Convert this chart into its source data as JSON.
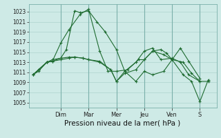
{
  "bg_color": "#ceeae6",
  "grid_color": "#aed4cf",
  "line_color": "#1e6b30",
  "ylim": [
    1004,
    1024.5
  ],
  "yticks": [
    1005,
    1007,
    1009,
    1011,
    1013,
    1015,
    1017,
    1019,
    1021,
    1023
  ],
  "xlabel": "Pression niveau de la mer( hPa )",
  "xlabel_fontsize": 7.5,
  "day_labels": [
    "Dim",
    "Mar",
    "Mer",
    "Jeu",
    "Ven",
    "S"
  ],
  "day_tick_positions": [
    1,
    2,
    3,
    4,
    5,
    6
  ],
  "vline_positions": [
    1,
    2,
    3,
    4,
    5,
    6
  ],
  "series": [
    {
      "x": [
        0.0,
        0.2,
        0.5,
        0.7,
        1.0,
        1.2,
        1.5,
        1.7,
        2.0,
        2.3,
        2.6,
        3.0,
        3.3,
        3.7,
        4.0,
        4.3,
        4.7,
        5.0,
        5.3,
        5.6,
        6.0
      ],
      "y": [
        1010.5,
        1011.2,
        1013.0,
        1013.2,
        1013.8,
        1015.5,
        1023.2,
        1022.8,
        1023.2,
        1021.0,
        1019.0,
        1015.5,
        1011.2,
        1009.2,
        1011.2,
        1010.5,
        1011.2,
        1013.5,
        1015.8,
        1013.2,
        1009.8
      ]
    },
    {
      "x": [
        0.0,
        0.2,
        0.5,
        0.7,
        1.0,
        1.3,
        1.7,
        2.0,
        2.4,
        2.7,
        3.0,
        3.4,
        3.8,
        4.0,
        4.3,
        4.7,
        5.0,
        5.4,
        5.7,
        6.0,
        6.3
      ],
      "y": [
        1010.5,
        1011.5,
        1013.0,
        1013.2,
        1016.8,
        1019.5,
        1022.5,
        1023.5,
        1015.2,
        1011.2,
        1011.2,
        1011.5,
        1013.5,
        1013.5,
        1015.2,
        1014.5,
        1013.5,
        1010.5,
        1009.2,
        1005.2,
        1009.5
      ]
    },
    {
      "x": [
        0.0,
        0.2,
        0.5,
        0.7,
        1.0,
        1.3,
        1.5,
        1.8,
        2.0,
        2.4,
        2.8,
        3.0,
        3.3,
        3.7,
        4.0,
        4.3,
        4.6,
        5.0,
        5.3,
        5.6,
        6.0
      ],
      "y": [
        1010.5,
        1011.5,
        1013.0,
        1013.2,
        1013.5,
        1013.8,
        1014.0,
        1013.8,
        1013.5,
        1013.2,
        1011.5,
        1009.2,
        1011.2,
        1013.0,
        1015.2,
        1015.8,
        1013.5,
        1013.8,
        1013.0,
        1010.5,
        1009.2
      ]
    },
    {
      "x": [
        0.0,
        0.2,
        0.5,
        0.7,
        1.0,
        1.3,
        1.5,
        1.8,
        2.0,
        2.4,
        2.8,
        3.0,
        3.3,
        3.7,
        4.0,
        4.3,
        4.6,
        4.8,
        5.0,
        5.4,
        5.7,
        6.0,
        6.3
      ],
      "y": [
        1010.5,
        1011.5,
        1013.0,
        1013.5,
        1013.8,
        1014.0,
        1014.0,
        1013.8,
        1013.5,
        1013.0,
        1011.5,
        1009.2,
        1010.8,
        1011.5,
        1013.5,
        1015.2,
        1015.5,
        1014.8,
        1013.5,
        1013.0,
        1010.8,
        1009.2,
        1009.2
      ]
    }
  ]
}
